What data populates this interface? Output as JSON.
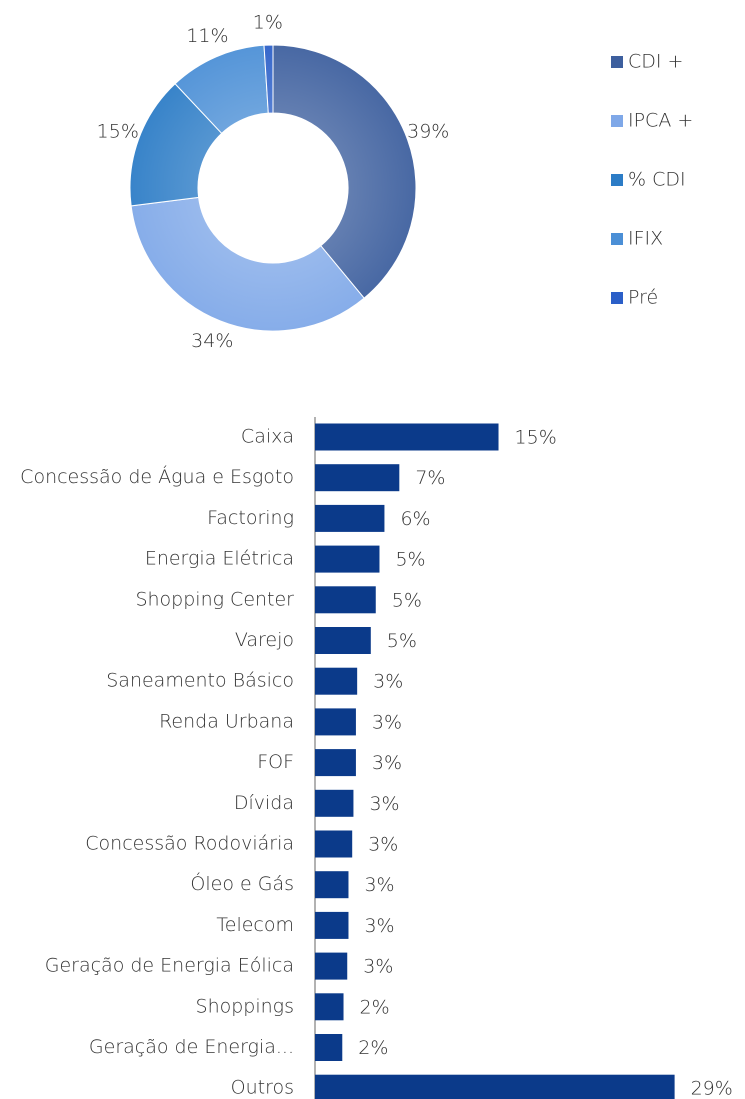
{
  "chart_data": [
    {
      "type": "donut",
      "categories": [
        "CDI +",
        "IPCA +",
        "% CDI",
        "IFIX",
        "Pré"
      ],
      "values": [
        39,
        34,
        15,
        11,
        1
      ],
      "colors": [
        "#3d5f9e",
        "#7fa8e8",
        "#2c7cc6",
        "#4b8fd6",
        "#2b5fc8"
      ],
      "legend": "right"
    },
    {
      "type": "hbar",
      "categories": [
        "Caixa",
        "Concessão de Água e Esgoto",
        "Factoring",
        "Energia Elétrica",
        "Shopping Center",
        "Varejo",
        "Saneamento Básico",
        "Renda Urbana",
        "FOF",
        "Dívida",
        "Concessão Rodoviária",
        "Óleo e Gás",
        "Telecom",
        "Geração de Energia Eólica",
        "Shoppings",
        "Geração de Energia...",
        "Outros"
      ],
      "values": [
        14.8,
        6.8,
        5.6,
        5.2,
        4.9,
        4.5,
        3.4,
        3.3,
        3.3,
        3.1,
        3.0,
        2.7,
        2.7,
        2.6,
        2.3,
        2.2,
        29.0
      ],
      "value_labels": [
        "15%",
        "7%",
        "6%",
        "5%",
        "5%",
        "5%",
        "3%",
        "3%",
        "3%",
        "3%",
        "3%",
        "3%",
        "3%",
        "3%",
        "2%",
        "2%",
        "29%"
      ],
      "color": "#0b3a8a",
      "xlim": [
        0,
        30
      ]
    }
  ]
}
